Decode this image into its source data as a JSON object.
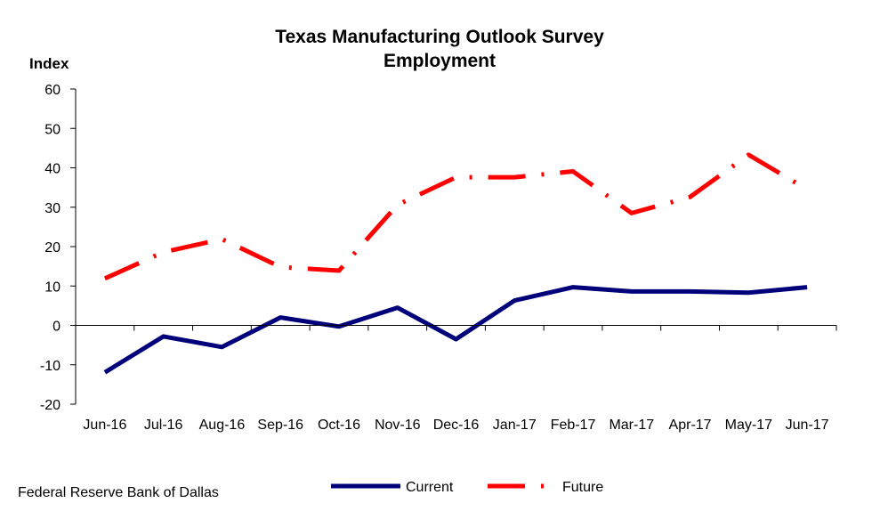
{
  "chart_data": {
    "type": "line",
    "title": "Texas Manufacturing Outlook Survey",
    "subtitle": "Employment",
    "ylabel": "Index",
    "xlabel": "",
    "ylim": [
      -20,
      60
    ],
    "yticks": [
      -20,
      -10,
      0,
      10,
      20,
      30,
      40,
      50,
      60
    ],
    "categories": [
      "Jun-16",
      "Jul-16",
      "Aug-16",
      "Sep-16",
      "Oct-16",
      "Nov-16",
      "Dec-16",
      "Jan-17",
      "Feb-17",
      "Mar-17",
      "Apr-17",
      "May-17",
      "Jun-17"
    ],
    "series": [
      {
        "name": "Current",
        "color": "#00007a",
        "style": "solid",
        "values": [
          -11.9,
          -2.8,
          -5.5,
          2.0,
          -0.3,
          4.5,
          -3.5,
          6.3,
          9.7,
          8.6,
          8.6,
          8.3,
          9.7
        ]
      },
      {
        "name": "Future",
        "color": "#ff0000",
        "style": "dash-dot",
        "values": [
          11.9,
          18.6,
          21.9,
          14.8,
          13.9,
          30.6,
          37.6,
          37.6,
          39.1,
          28.5,
          32.6,
          43.3,
          34.5
        ]
      }
    ],
    "legend": "bottom-center",
    "grid": false
  },
  "source": "Federal Reserve Bank of Dallas"
}
